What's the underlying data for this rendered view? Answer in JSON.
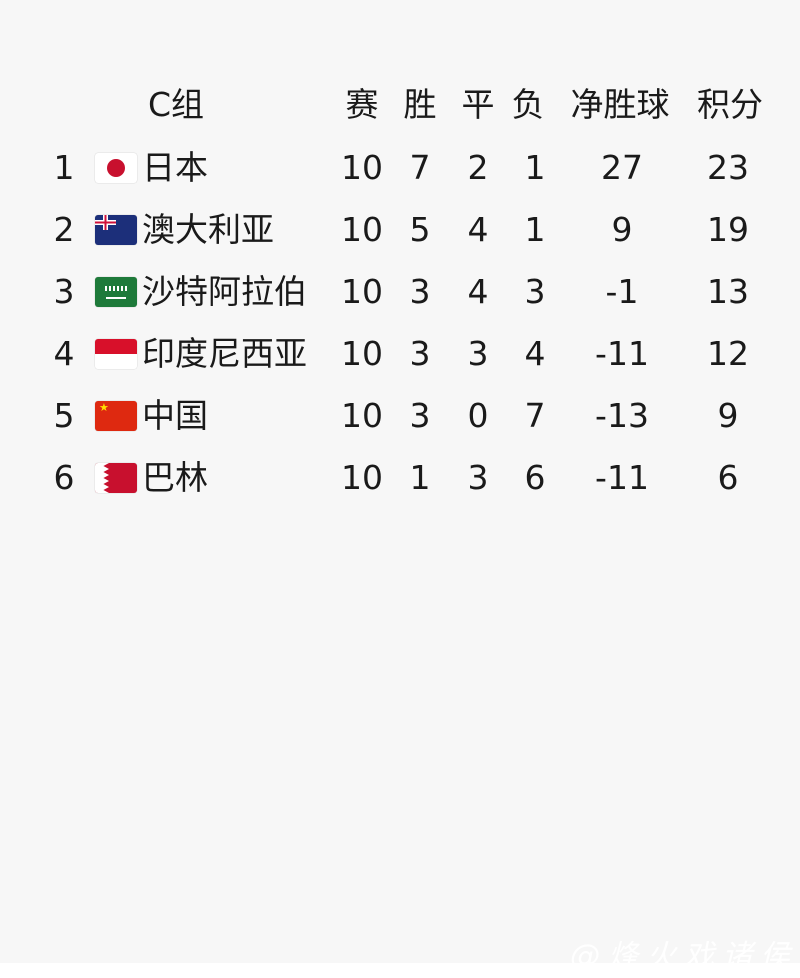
{
  "header": {
    "group": "C组",
    "played": "赛",
    "won": "胜",
    "draw": "平",
    "lost": "负",
    "goal_diff": "净胜球",
    "points": "积分"
  },
  "rows": [
    {
      "rank": "1",
      "flag": "japan-flag",
      "team": "日本",
      "played": "10",
      "won": "7",
      "draw": "2",
      "lost": "1",
      "goal_diff": "27",
      "points": "23"
    },
    {
      "rank": "2",
      "flag": "australia-flag",
      "team": "澳大利亚",
      "played": "10",
      "won": "5",
      "draw": "4",
      "lost": "1",
      "goal_diff": "9",
      "points": "19"
    },
    {
      "rank": "3",
      "flag": "saudi-arabia-flag",
      "team": "沙特阿拉伯",
      "played": "10",
      "won": "3",
      "draw": "4",
      "lost": "3",
      "goal_diff": "-1",
      "points": "13"
    },
    {
      "rank": "4",
      "flag": "indonesia-flag",
      "team": "印度尼西亚",
      "played": "10",
      "won": "3",
      "draw": "3",
      "lost": "4",
      "goal_diff": "-11",
      "points": "12"
    },
    {
      "rank": "5",
      "flag": "china-flag",
      "team": "中国",
      "played": "10",
      "won": "3",
      "draw": "0",
      "lost": "7",
      "goal_diff": "-13",
      "points": "9"
    },
    {
      "rank": "6",
      "flag": "bahrain-flag",
      "team": "巴林",
      "played": "10",
      "won": "1",
      "draw": "3",
      "lost": "6",
      "goal_diff": "-11",
      "points": "6"
    }
  ],
  "watermark": "@烽火戏诸侯"
}
